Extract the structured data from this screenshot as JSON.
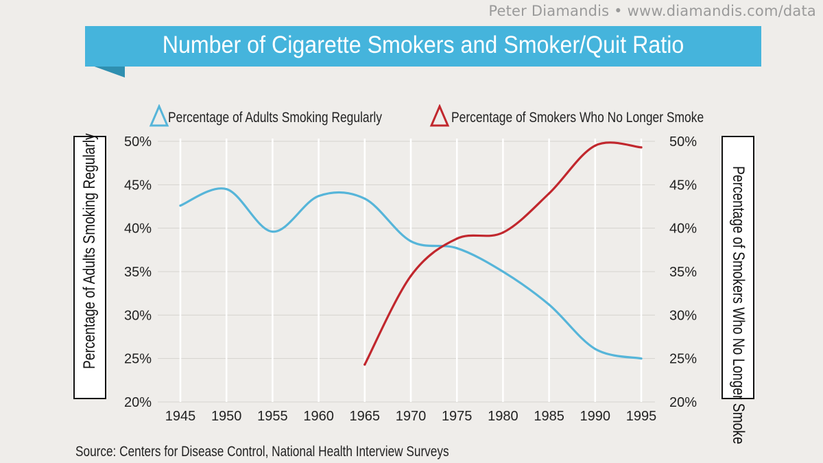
{
  "header": {
    "attribution": "Peter Diamandis  •  www.diamandis.com/data",
    "title": "Number of Cigarette Smokers and Smoker/Quit Ratio"
  },
  "source": "Source: Centers for Disease Control, National Health Interview Surveys",
  "colors": {
    "series1": "#56b5d9",
    "series2": "#c1272d",
    "banner": "#45b4dc",
    "grid": "#d4d2ce"
  },
  "chart_data": {
    "type": "line",
    "x_ticks": [
      "1945",
      "1950",
      "1955",
      "1960",
      "1965",
      "1970",
      "1975",
      "1980",
      "1985",
      "1990",
      "1995"
    ],
    "left_ylabel": "Percentage of Adults Smoking Regularly",
    "right_ylabel": "Percentage of Smokers Who No Longer Smoke",
    "left_ticks": [
      "50%",
      "45%",
      "40%",
      "35%",
      "30%",
      "25%",
      "20%"
    ],
    "right_ticks": [
      "50%",
      "45%",
      "40%",
      "35%",
      "30%",
      "25%",
      "20%"
    ],
    "xlim": [
      1945,
      1995
    ],
    "ylim": [
      20,
      50
    ],
    "grid": true,
    "legend_position": "top",
    "series": [
      {
        "name": "Percentage of Adults Smoking Regularly",
        "color": "#56b5d9",
        "axis": "left",
        "x": [
          1945,
          1950,
          1955,
          1960,
          1965,
          1970,
          1975,
          1980,
          1985,
          1990,
          1995
        ],
        "y": [
          42.6,
          44.5,
          39.6,
          43.7,
          43.4,
          38.5,
          37.7,
          35,
          31.2,
          26.1,
          25
        ]
      },
      {
        "name": "Percentage of Smokers Who No Longer Smoke",
        "color": "#c1272d",
        "axis": "right",
        "x": [
          1965,
          1970,
          1975,
          1980,
          1985,
          1990,
          1995
        ],
        "y": [
          24.3,
          34.5,
          38.8,
          39.5,
          44,
          49.5,
          49.3
        ]
      }
    ]
  }
}
